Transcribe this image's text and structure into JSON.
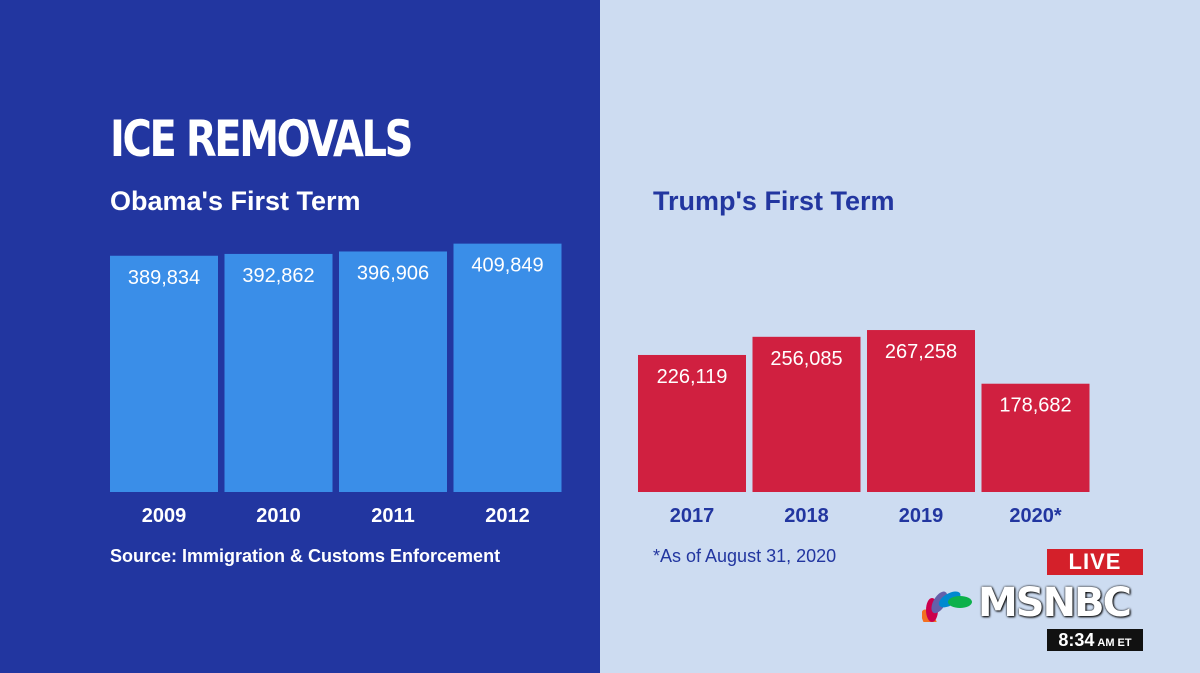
{
  "title": "ICE REMOVALS",
  "chart_data": [
    {
      "type": "bar",
      "title": "Obama's First Term",
      "categories": [
        "2009",
        "2010",
        "2011",
        "2012"
      ],
      "values": [
        389834,
        392862,
        396906,
        409849
      ],
      "value_labels": [
        "389,834",
        "392,862",
        "396,906",
        "409,849"
      ],
      "ylim": [
        0,
        420000
      ],
      "color": "#3a8ee8",
      "footnote": "Source: Immigration & Customs Enforcement"
    },
    {
      "type": "bar",
      "title": "Trump's First Term",
      "categories": [
        "2017",
        "2018",
        "2019",
        "2020*"
      ],
      "values": [
        226119,
        256085,
        267258,
        178682
      ],
      "value_labels": [
        "226,119",
        "256,085",
        "267,258",
        "178,682"
      ],
      "ylim": [
        0,
        420000
      ],
      "color": "#d02040",
      "footnote": "*As of August 31, 2020"
    }
  ],
  "broadcast": {
    "live_label": "LIVE",
    "network": "MSNBC",
    "time": "8:34",
    "time_suffix": "AM ET"
  },
  "colors": {
    "left_background": "#2236a0",
    "right_background": "#cddcf1",
    "live_red": "#d4202a"
  }
}
